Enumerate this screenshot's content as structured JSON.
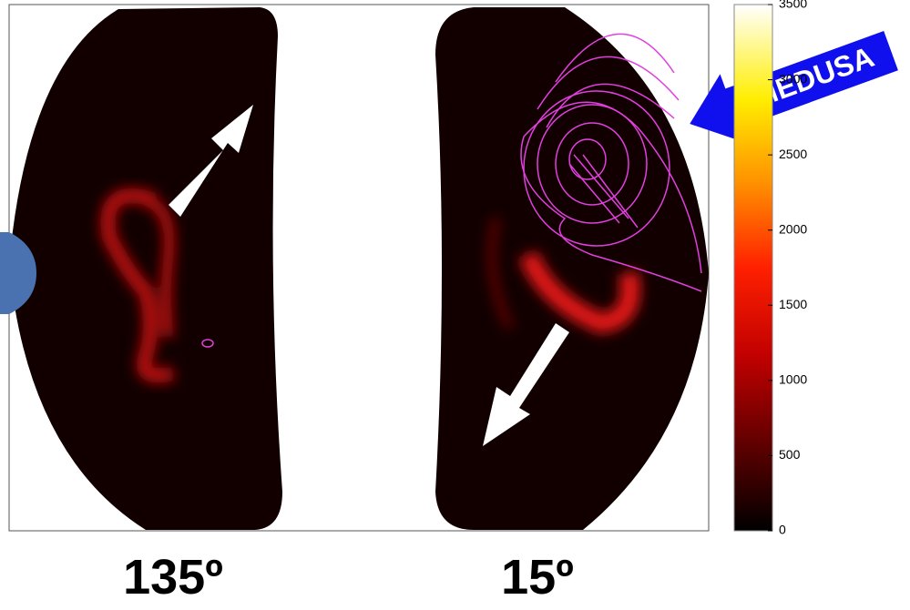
{
  "colorbar": {
    "lim": [
      0,
      3500
    ],
    "ticks": [
      0,
      500,
      1000,
      1500,
      2000,
      2500,
      3000,
      3500
    ]
  },
  "panels": [
    {
      "label": "135º"
    },
    {
      "label": "15º"
    }
  ],
  "annotation": "MEDUSA"
}
